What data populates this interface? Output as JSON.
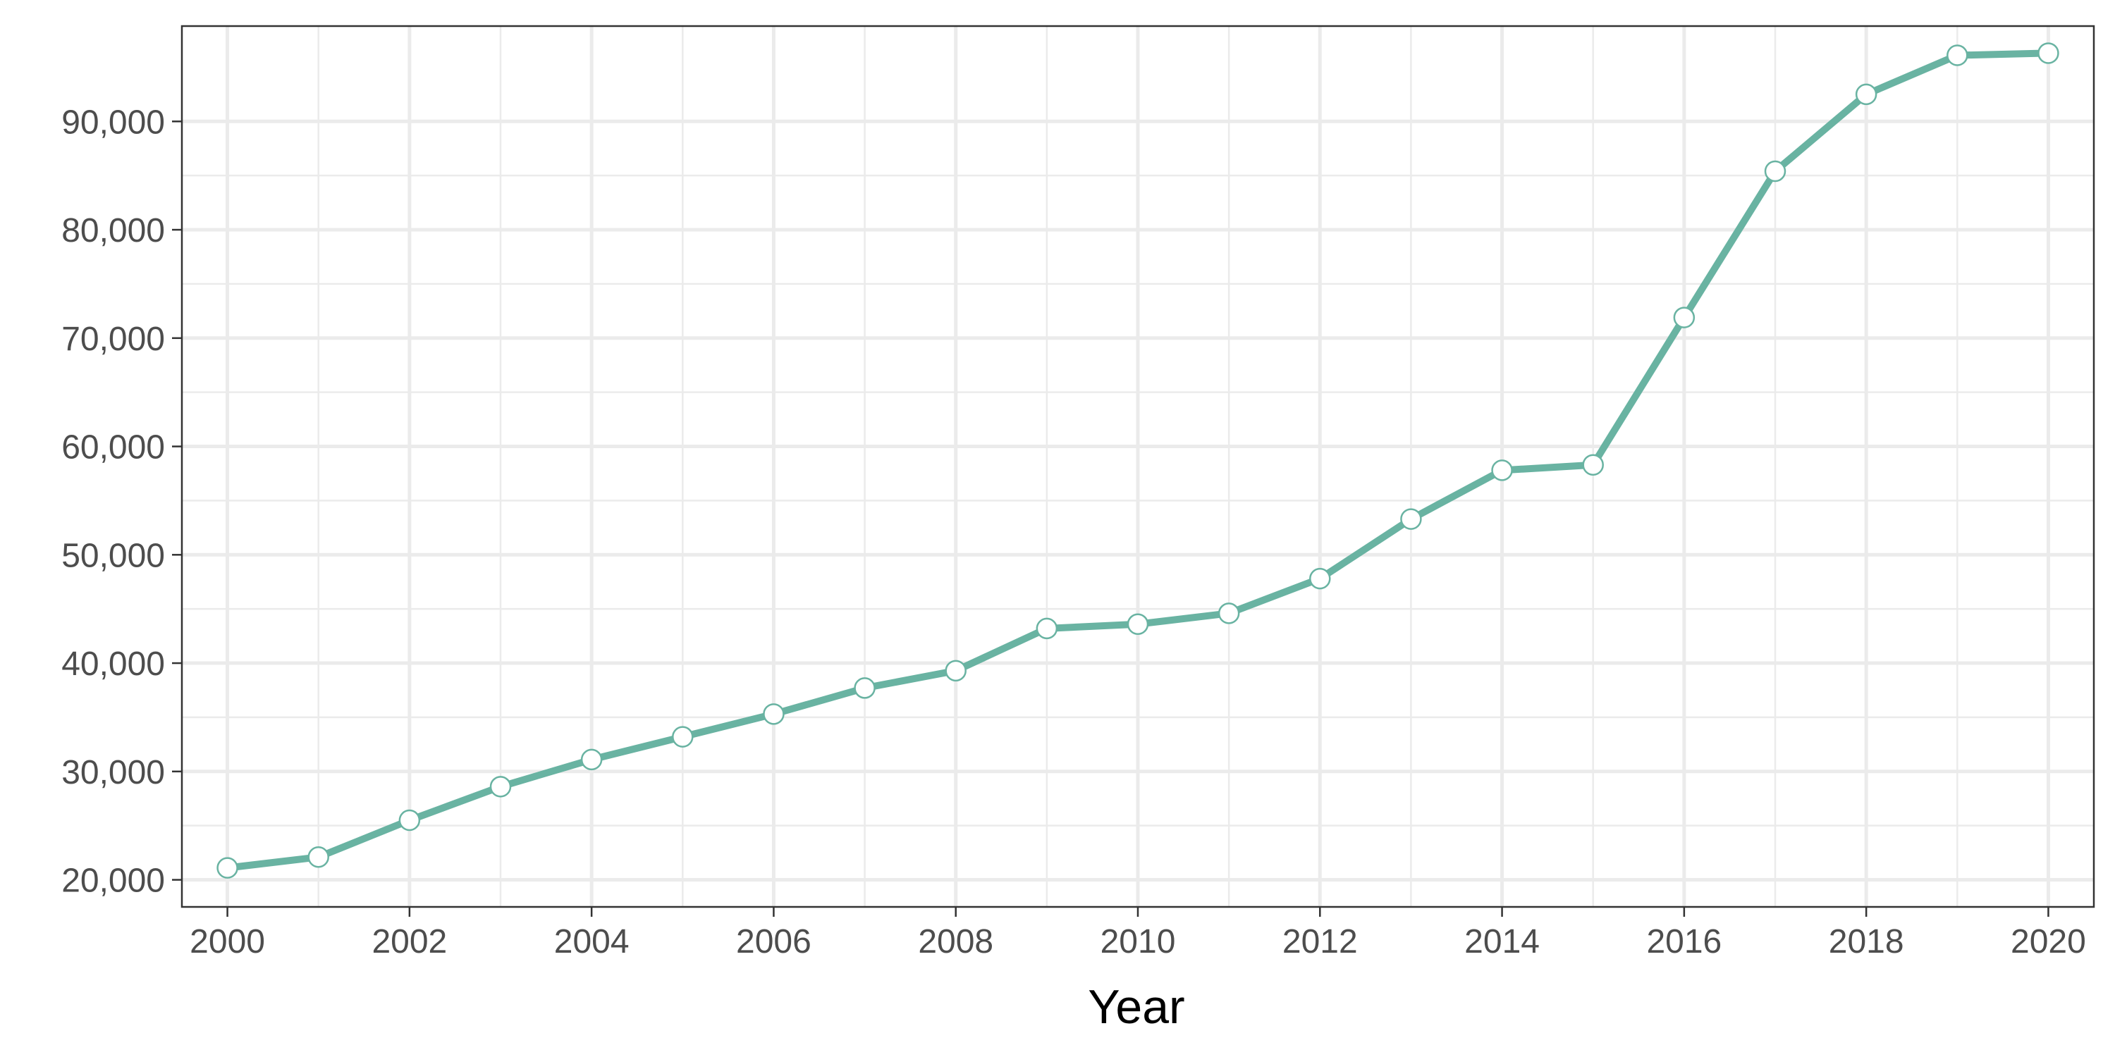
{
  "chart_data": {
    "type": "line",
    "title": "",
    "xlabel": "Year",
    "ylabel": "",
    "x": [
      2000,
      2001,
      2002,
      2003,
      2004,
      2005,
      2006,
      2007,
      2008,
      2009,
      2010,
      2011,
      2012,
      2013,
      2014,
      2015,
      2016,
      2017,
      2018,
      2019,
      2020
    ],
    "series": [
      {
        "values": [
          21100,
          22100,
          25500,
          28600,
          31100,
          33200,
          35300,
          37700,
          39300,
          43200,
          43600,
          44600,
          47800,
          53300,
          57800,
          58300,
          71900,
          85400,
          92500,
          96100,
          96300
        ],
        "color": "#69b3a2"
      }
    ],
    "xlim": [
      1999.5,
      2020.5
    ],
    "ylim": [
      17500,
      98800
    ],
    "x_ticks": [
      2000,
      2002,
      2004,
      2006,
      2008,
      2010,
      2012,
      2014,
      2016,
      2018,
      2020
    ],
    "x_tick_labels": [
      "2000",
      "2002",
      "2004",
      "2006",
      "2008",
      "2010",
      "2012",
      "2014",
      "2016",
      "2018",
      "2020"
    ],
    "y_ticks": [
      20000,
      30000,
      40000,
      50000,
      60000,
      70000,
      80000,
      90000
    ],
    "y_tick_labels": [
      "20,000",
      "30,000",
      "40,000",
      "50,000",
      "60,000",
      "70,000",
      "80,000",
      "90,000"
    ],
    "grid": true,
    "legend": "none",
    "point_fill": "#ffffff"
  }
}
